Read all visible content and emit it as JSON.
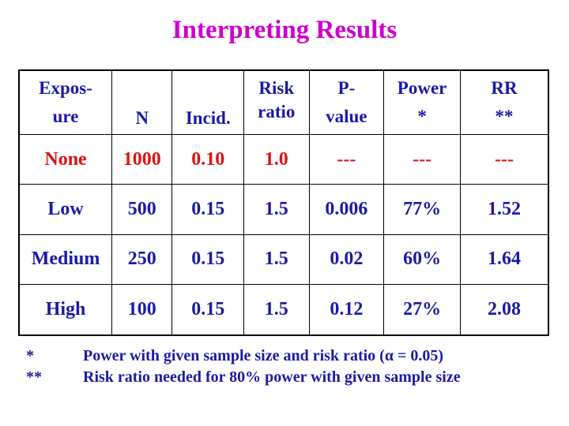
{
  "title": "Interpreting Results",
  "table": {
    "headers": [
      {
        "line1": "Expos-",
        "line2": "ure"
      },
      {
        "line1": "",
        "line2": "N"
      },
      {
        "line1": "",
        "line2": "Incid."
      },
      {
        "line1": "Risk",
        "line2": "ratio"
      },
      {
        "line1": "P-",
        "line2": "value"
      },
      {
        "line1": "Power",
        "line2": "*"
      },
      {
        "line1": "RR",
        "line2": "**"
      }
    ],
    "rows": [
      [
        "None",
        "1000",
        "0.10",
        "1.0",
        "---",
        "---",
        "---"
      ],
      [
        "Low",
        "500",
        "0.15",
        "1.5",
        "0.006",
        "77%",
        "1.52"
      ],
      [
        "Medium",
        "250",
        "0.15",
        "1.5",
        "0.02",
        "60%",
        "1.64"
      ],
      [
        "High",
        "100",
        "0.15",
        "1.5",
        "0.12",
        "27%",
        "2.08"
      ]
    ]
  },
  "footnotes": [
    {
      "mark": "*",
      "text": "Power with given sample size and risk ratio (α = 0.05)"
    },
    {
      "mark": "**",
      "text": "Risk ratio needed for 80% power with given sample size"
    }
  ],
  "colors": {
    "title": "#cc00cc",
    "header_text": "#1a1aa6",
    "reference_row": "#e01010",
    "body_text": "#1a1aa6"
  }
}
